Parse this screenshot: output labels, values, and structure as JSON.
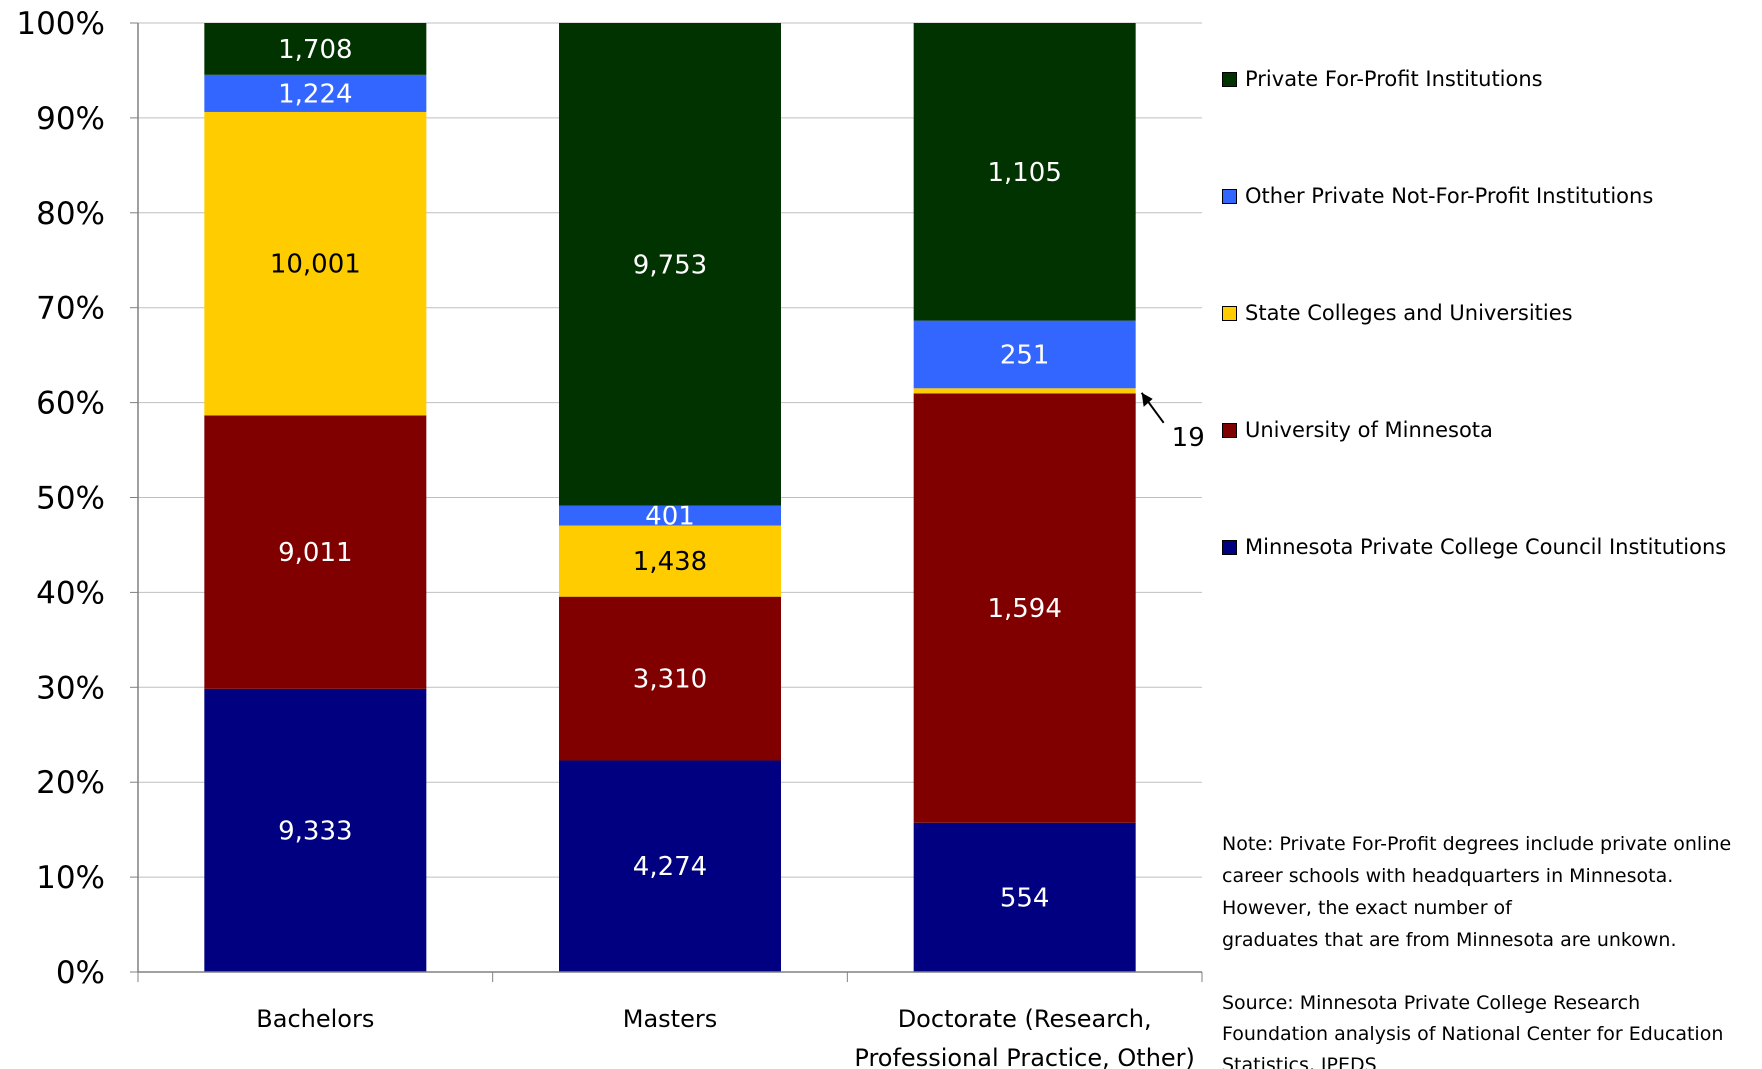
{
  "chart_data": {
    "type": "bar",
    "stacked": true,
    "normalized": true,
    "categories": [
      "Bachelors",
      "Masters",
      "Doctorate (Research, Professional Practice, Other)"
    ],
    "category_label_lines": [
      [
        "Bachelors"
      ],
      [
        "Masters"
      ],
      [
        "Doctorate (Research,",
        "Professional Practice, Other)"
      ]
    ],
    "series": [
      {
        "name": "Minnesota Private College Council Institutions",
        "values": [
          9333,
          4274,
          554
        ],
        "labels": [
          "9,333",
          "4,274",
          "554"
        ],
        "color": "#000080"
      },
      {
        "name": "University of Minnesota",
        "values": [
          9011,
          3310,
          1594
        ],
        "labels": [
          "9,011",
          "3,310",
          "1,594"
        ],
        "color": "#800000"
      },
      {
        "name": "State Colleges and Universities",
        "values": [
          10001,
          1438,
          19
        ],
        "labels": [
          "10,001",
          "1,438",
          "19"
        ],
        "color": "#FFCC00"
      },
      {
        "name": "Other Private Not-For-Profit Institutions",
        "values": [
          1224,
          401,
          251
        ],
        "labels": [
          "1,224",
          "401",
          "251"
        ],
        "color": "#3366FF"
      },
      {
        "name": "Private For-Profit Institutions",
        "values": [
          1708,
          9753,
          1105
        ],
        "labels": [
          "1,708",
          "9,753",
          "1,105"
        ],
        "color": "#003300"
      }
    ],
    "yaxis": {
      "min": 0,
      "max": 100,
      "ticks": [
        "0%",
        "10%",
        "20%",
        "30%",
        "40%",
        "50%",
        "60%",
        "70%",
        "80%",
        "90%",
        "100%"
      ]
    },
    "grid": true,
    "legend_position": "right",
    "annotation": {
      "text": "19",
      "series": "State Colleges and Universities",
      "category": "Doctorate (Research, Professional Practice, Other)"
    }
  },
  "note": [
    "Note: Private For-Profit degrees include private online",
    "career schools with headquarters in Minnesota.",
    "However, the exact number of",
    "graduates that are from Minnesota are unkown."
  ],
  "source": [
    "Source: Minnesota Private College Research",
    "Foundation analysis of National Center for Education",
    "Statistics, IPEDS"
  ]
}
